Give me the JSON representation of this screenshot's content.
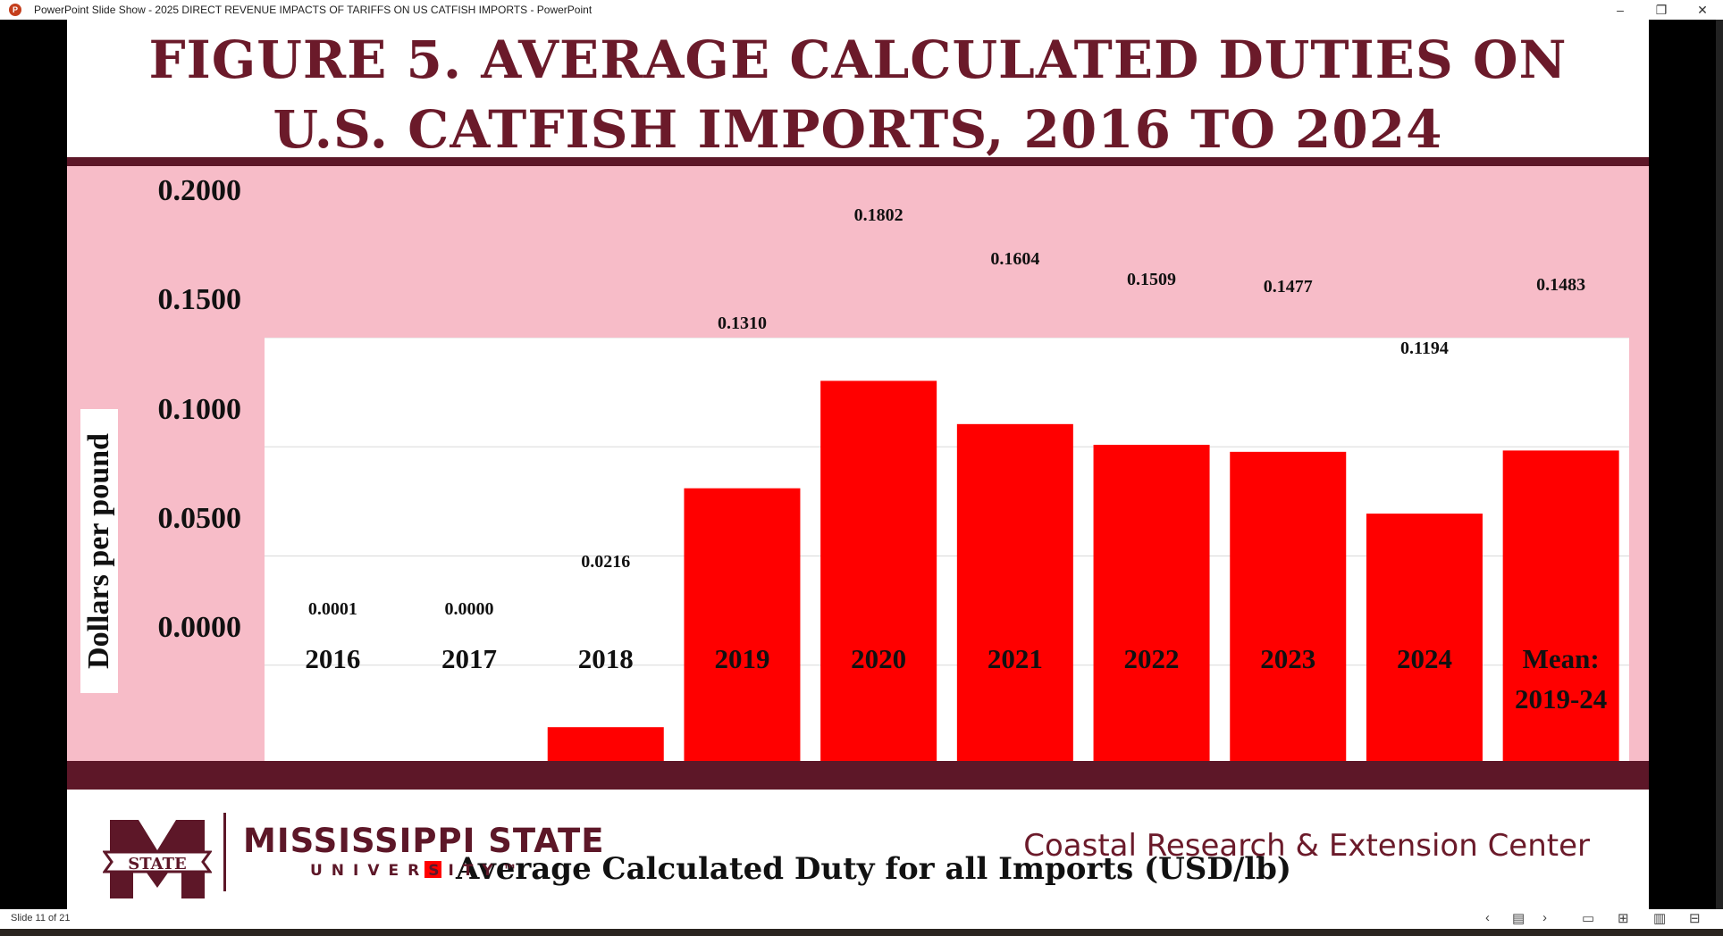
{
  "window": {
    "title": "PowerPoint Slide Show  -  2025 DIRECT REVENUE IMPACTS OF TARIFFS ON US CATFISH IMPORTS - PowerPoint",
    "app_icon": "P",
    "minimize": "–",
    "restore": "❐",
    "close": "✕"
  },
  "slide": {
    "title_line1": "FIGURE 5. AVERAGE CALCULATED DUTIES ON",
    "title_line2": "U.S. CATFISH IMPORTS, 2016 TO 2024",
    "university_name": "MISSISSIPPI STATE",
    "university_sub": "UNIVERSITY™",
    "logo_text": "STATE",
    "center_name": "Coastal Research & Extension Center"
  },
  "status": {
    "slide_counter": "Slide 11 of 21",
    "icons": [
      "prev-icon",
      "slide-sorter-menu-icon",
      "next-icon",
      "normal-view-icon",
      "grid-view-icon",
      "reading-view-icon",
      "presenter-icon"
    ]
  },
  "colors": {
    "bar": "#ff0000",
    "maroon": "#5d1728",
    "pink": "#f7bcc8",
    "title": "#6b1a2a"
  },
  "chart_data": {
    "type": "bar",
    "categories": [
      "2016",
      "2017",
      "2018",
      "2019",
      "2020",
      "2021",
      "2022",
      "2023",
      "2024",
      "Mean:\n2019-24"
    ],
    "values": [
      0.0001,
      0.0,
      0.0216,
      0.131,
      0.1802,
      0.1604,
      0.1509,
      0.1477,
      0.1194,
      0.1483
    ],
    "value_labels": [
      "0.0001",
      "0.0000",
      "0.0216",
      "0.1310",
      "0.1802",
      "0.1604",
      "0.1509",
      "0.1477",
      "0.1194",
      "0.1483"
    ],
    "ylabel": "Dollars per pound",
    "ylim": [
      0,
      0.2
    ],
    "yticks": [
      "0.0000",
      "0.0500",
      "0.1000",
      "0.1500",
      "0.2000"
    ],
    "ytick_values": [
      0,
      0.05,
      0.1,
      0.15,
      0.2
    ],
    "legend": "Average Calculated Duty for all Imports (USD/lb)",
    "legend_position": "bottom",
    "grid": true
  }
}
